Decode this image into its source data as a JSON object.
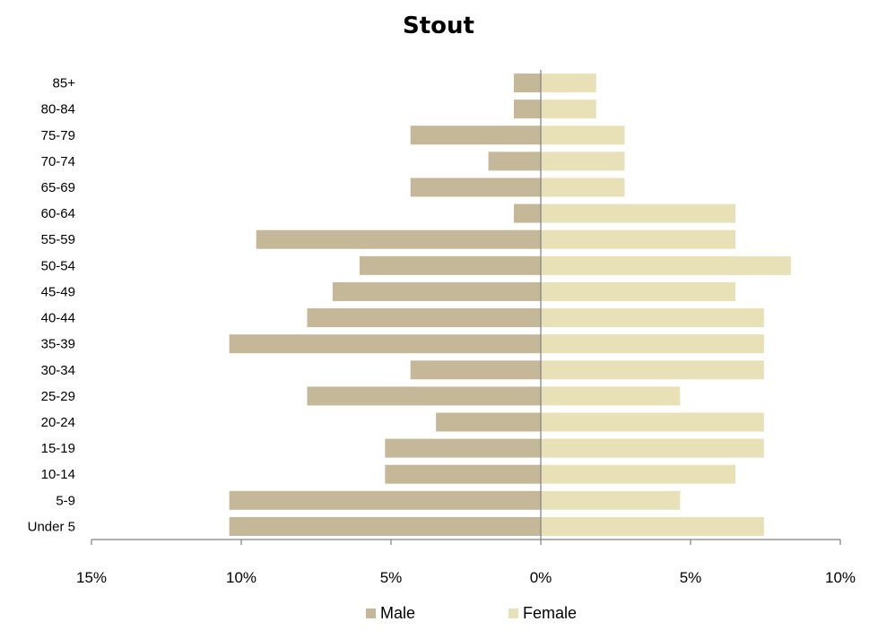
{
  "chart_data": {
    "type": "bar",
    "orientation": "horizontal",
    "title": "Stout",
    "categories": [
      "Under 5",
      "5-9",
      "10-14",
      "15-19",
      "20-24",
      "25-29",
      "30-34",
      "35-39",
      "40-44",
      "45-49",
      "50-54",
      "55-59",
      "60-64",
      "65-69",
      "70-74",
      "75-79",
      "80-84",
      "85+"
    ],
    "series": [
      {
        "name": "Male",
        "values": [
          -10.4,
          -10.4,
          -5.2,
          -5.2,
          -3.5,
          -7.8,
          -4.35,
          -10.4,
          -7.8,
          -6.95,
          -6.05,
          -9.5,
          -0.9,
          -4.35,
          -1.75,
          -4.35,
          -0.9,
          -0.9
        ],
        "color": "#c4b898"
      },
      {
        "name": "Female",
        "values": [
          7.45,
          4.65,
          6.5,
          7.45,
          7.45,
          4.65,
          7.45,
          7.45,
          7.45,
          6.5,
          8.35,
          6.5,
          6.5,
          2.8,
          2.8,
          2.8,
          1.85,
          1.85
        ],
        "color": "#e8e1b8"
      }
    ],
    "xlim": [
      -15,
      10
    ],
    "x_ticks": [
      -15,
      -10,
      -5,
      0,
      5,
      10
    ],
    "x_tick_labels": [
      "15%",
      "10%",
      "5%",
      "0%",
      "5%",
      "10%"
    ],
    "legend": "bottom",
    "grid": false
  }
}
